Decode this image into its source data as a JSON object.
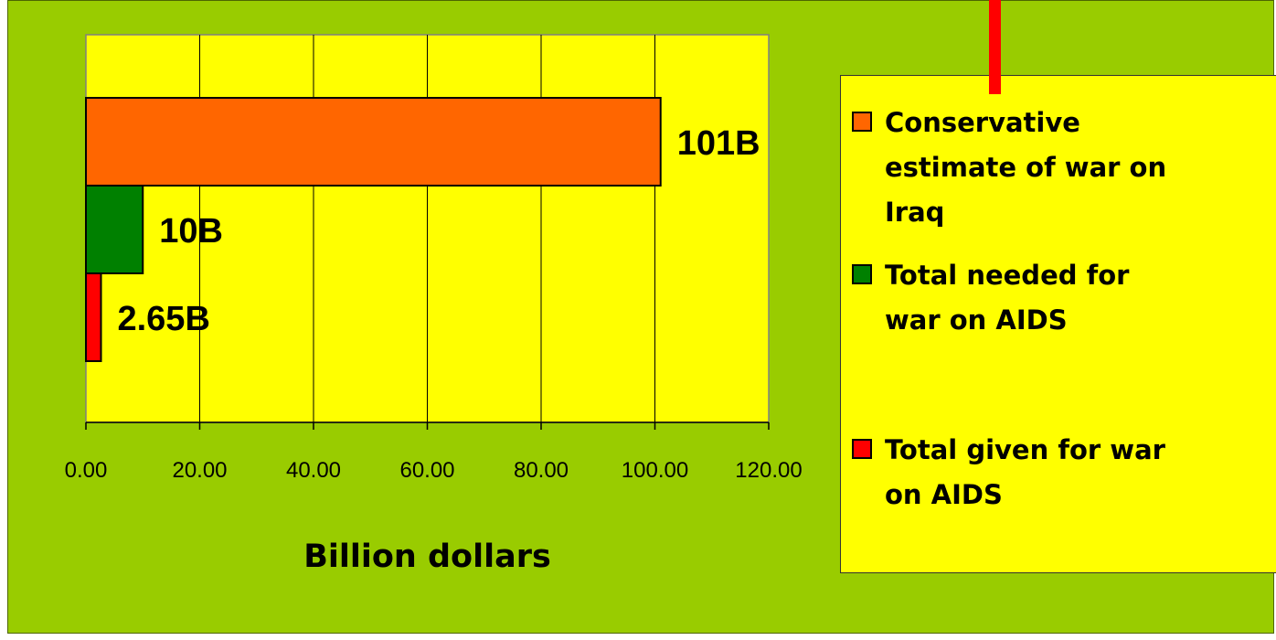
{
  "chart_data": {
    "type": "bar",
    "orientation": "horizontal",
    "xlabel": "Billion dollars",
    "xlim": [
      0,
      120
    ],
    "x_ticks": [
      "0.00",
      "20.00",
      "40.00",
      "60.00",
      "80.00",
      "100.00",
      "120.00"
    ],
    "grid": "vertical",
    "legend_placement": "right",
    "series": [
      {
        "name": "Conservative\nestimate of war on\nIraq",
        "value": 101,
        "label": "101B",
        "color": "#ff6600"
      },
      {
        "name": "Total needed for\nwar on AIDS",
        "value": 10,
        "label": "10B",
        "color": "#008000"
      },
      {
        "name": "Total given for war\non AIDS",
        "value": 2.65,
        "label": "2.65B",
        "color": "#ff0000"
      }
    ]
  },
  "colors": {
    "background": "#99cc00",
    "plot_area": "#ffff00",
    "legend_background": "#ffff00",
    "pointer": "#ff0000"
  }
}
